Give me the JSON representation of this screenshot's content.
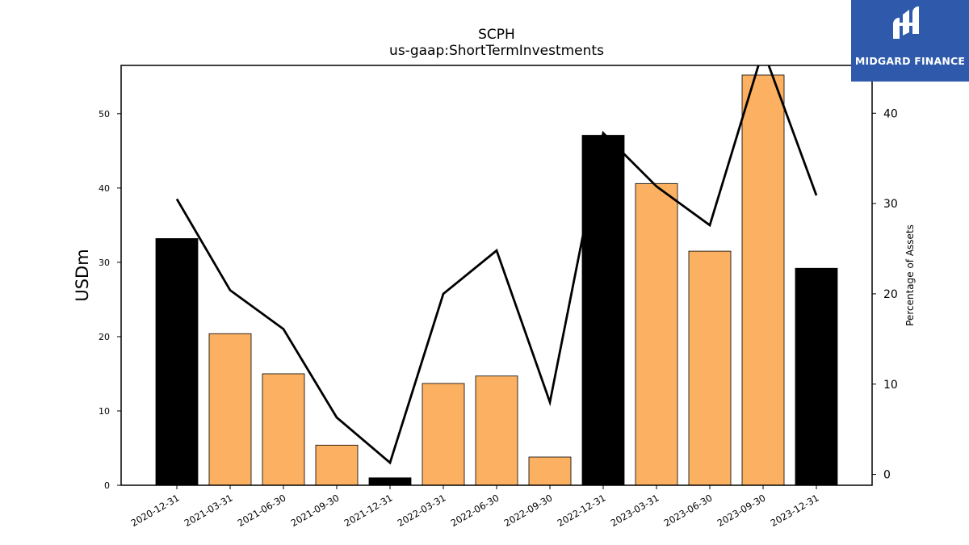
{
  "chart_data": {
    "type": "bar",
    "title": "SCPH",
    "subtitle": "us-gaap:ShortTermInvestments",
    "ylabel": "USDm",
    "y2label": "Percentage of Assets",
    "categories": [
      "2020-12-31",
      "2021-03-31",
      "2021-06-30",
      "2021-09-30",
      "2021-12-31",
      "2022-03-31",
      "2022-06-30",
      "2022-09-30",
      "2022-12-31",
      "2023-03-31",
      "2023-06-30",
      "2023-09-30",
      "2023-12-31"
    ],
    "series": [
      {
        "values": [
          33.2,
          20.4,
          15.0,
          5.4,
          1.0,
          13.7,
          14.7,
          3.8,
          47.1,
          40.6,
          31.5,
          55.2,
          29.2
        ],
        "colors": [
          "#000000",
          "#fbb161",
          "#fbb161",
          "#fbb161",
          "#000000",
          "#fbb161",
          "#fbb161",
          "#fbb161",
          "#000000",
          "#fbb161",
          "#fbb161",
          "#fbb161",
          "#000000"
        ]
      },
      {
        "axis": "right",
        "type": "line",
        "values": [
          30.5,
          20.4,
          16.1,
          6.3,
          1.3,
          20.0,
          24.8,
          8.0,
          37.8,
          31.9,
          27.6,
          47.0,
          30.9
        ]
      }
    ],
    "ylim": [
      0,
      56.5
    ],
    "y2lim": [
      -1.2,
      45.3
    ],
    "yticks": [
      0,
      10,
      20,
      30,
      40,
      50
    ],
    "y2ticks": [
      0,
      10,
      20,
      30,
      40
    ],
    "grid": false
  },
  "logo": {
    "text": "MIDGARD FINANCE",
    "bg": "#2f5aab"
  }
}
